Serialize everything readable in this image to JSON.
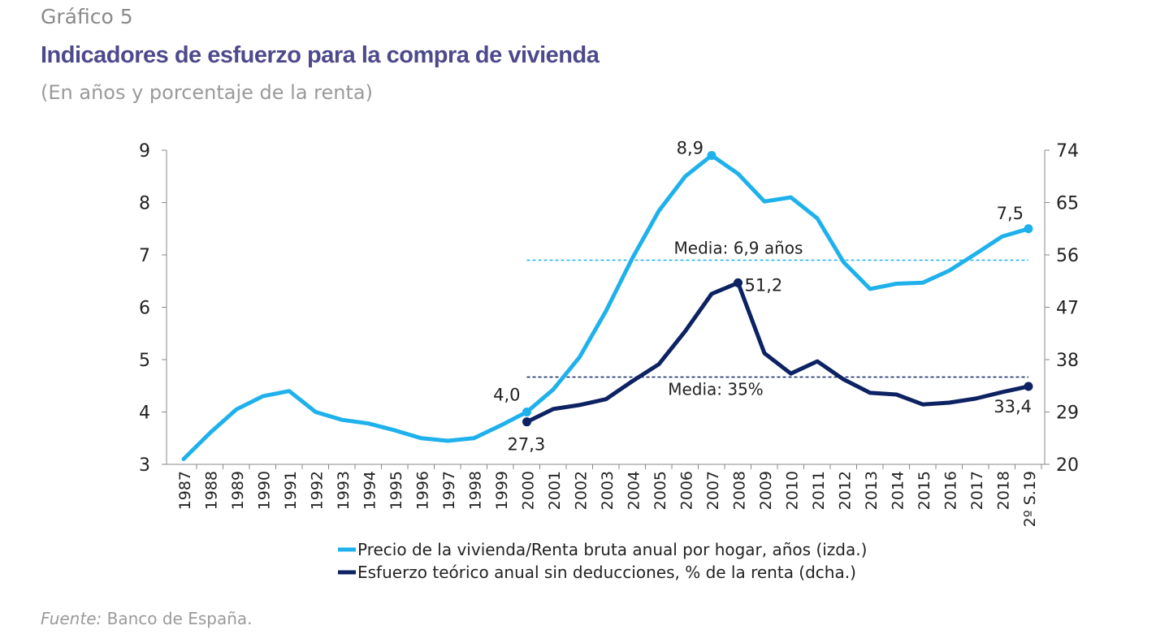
{
  "header": {
    "label": "Gráfico 5",
    "title": "Indicadores de esfuerzo para la compra de vivienda",
    "subtitle": "(En años y porcentaje de la renta)"
  },
  "footer": {
    "source_label": "Fuente:",
    "source_text": "Banco de España."
  },
  "chart_data": {
    "type": "line",
    "categories": [
      "1987",
      "1988",
      "1989",
      "1990",
      "1991",
      "1992",
      "1993",
      "1994",
      "1995",
      "1996",
      "1997",
      "1998",
      "1999",
      "2000",
      "2001",
      "2002",
      "2003",
      "2004",
      "2005",
      "2006",
      "2007",
      "2008",
      "2009",
      "2010",
      "2011",
      "2012",
      "2013",
      "2014",
      "2015",
      "2016",
      "2017",
      "2018",
      "2º S.19"
    ],
    "y_left": {
      "range": [
        3,
        9
      ],
      "ticks": [
        "3",
        "4",
        "5",
        "6",
        "7",
        "8",
        "9"
      ]
    },
    "y_right": {
      "range": [
        20,
        74
      ],
      "ticks": [
        "20",
        "29",
        "38",
        "47",
        "56",
        "65",
        "74"
      ]
    },
    "series": [
      {
        "name": "Precio de la vivienda/Renta bruta anual por hogar, años (izda.)",
        "axis": "left",
        "color": "#1fb1ec",
        "values": [
          3.1,
          3.6,
          4.05,
          4.3,
          4.4,
          4.0,
          3.85,
          3.78,
          3.65,
          3.5,
          3.45,
          3.5,
          3.74,
          4.0,
          4.43,
          5.05,
          5.93,
          6.94,
          7.84,
          8.5,
          8.9,
          8.55,
          8.02,
          8.1,
          7.7,
          6.86,
          6.35,
          6.45,
          6.47,
          6.7,
          7.02,
          7.35,
          7.5
        ]
      },
      {
        "name": "Esfuerzo teórico anual sin deducciones, % de la renta (dcha.)",
        "axis": "right",
        "color": "#0c2262",
        "values": [
          null,
          null,
          null,
          null,
          null,
          null,
          null,
          null,
          null,
          null,
          null,
          null,
          null,
          27.3,
          29.5,
          30.2,
          31.2,
          34.3,
          37.2,
          42.9,
          49.3,
          51.2,
          39.1,
          35.6,
          37.7,
          34.6,
          32.3,
          32.0,
          30.3,
          30.6,
          31.3,
          32.4,
          33.4
        ]
      }
    ],
    "reference_lines": [
      {
        "label": "Media: 6,9 años",
        "value": 6.9,
        "axis": "left",
        "from": "2000",
        "to": "2º S.19",
        "color": "#1fb1ec"
      },
      {
        "label": "Media: 35%",
        "value": 35,
        "axis": "right",
        "from": "2000",
        "to": "2º S.19",
        "color": "#0c2262"
      }
    ],
    "annotations": [
      {
        "series": 0,
        "category": "2000",
        "text": "4,0"
      },
      {
        "series": 0,
        "category": "2007",
        "text": "8,9"
      },
      {
        "series": 0,
        "category": "2º S.19",
        "text": "7,5"
      },
      {
        "series": 1,
        "category": "2000",
        "text": "27,3"
      },
      {
        "series": 1,
        "category": "2008",
        "text": "51,2"
      },
      {
        "series": 1,
        "category": "2º S.19",
        "text": "33,4"
      }
    ],
    "legend": "bottom",
    "grid": false
  }
}
